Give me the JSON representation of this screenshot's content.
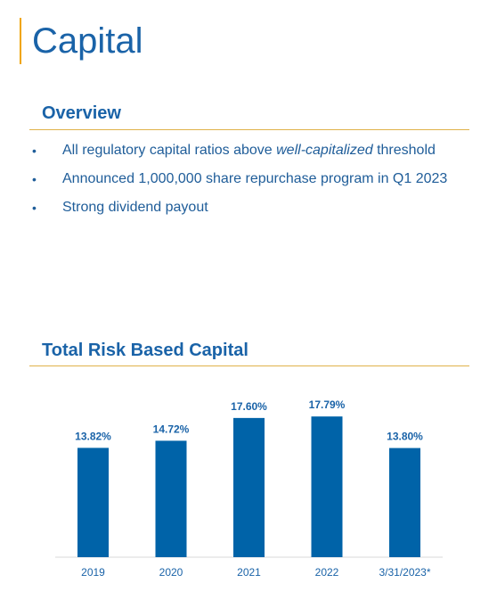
{
  "page": {
    "title": "Capital"
  },
  "overview": {
    "heading": "Overview",
    "bullets": [
      {
        "before": "All regulatory capital ratios above ",
        "emphasis": "well-capitalized",
        "after": " threshold"
      },
      {
        "before": "Announced 1,000,000 share repurchase program in Q1 2023",
        "emphasis": "",
        "after": ""
      },
      {
        "before": "Strong dividend payout",
        "emphasis": "",
        "after": ""
      }
    ],
    "bullet_glyph": "•"
  },
  "chart_section": {
    "heading": "Total Risk Based Capital"
  },
  "colors": {
    "accent": "#f0a500",
    "brand_blue": "#1a63a8",
    "bar_blue": "#0063a8",
    "rule_gold": "#e0b24a"
  },
  "chart_data": {
    "type": "bar",
    "title": "Total Risk Based Capital",
    "categories": [
      "2019",
      "2020",
      "2021",
      "2022",
      "3/31/2023*"
    ],
    "values": [
      13.82,
      14.72,
      17.6,
      17.79,
      13.8
    ],
    "labels": [
      "13.82%",
      "14.72%",
      "17.60%",
      "17.79%",
      "13.80%"
    ],
    "unit": "%",
    "xlabel": "",
    "ylabel": "",
    "ylim": [
      0,
      18.6
    ],
    "grid": false,
    "legend": "none"
  }
}
